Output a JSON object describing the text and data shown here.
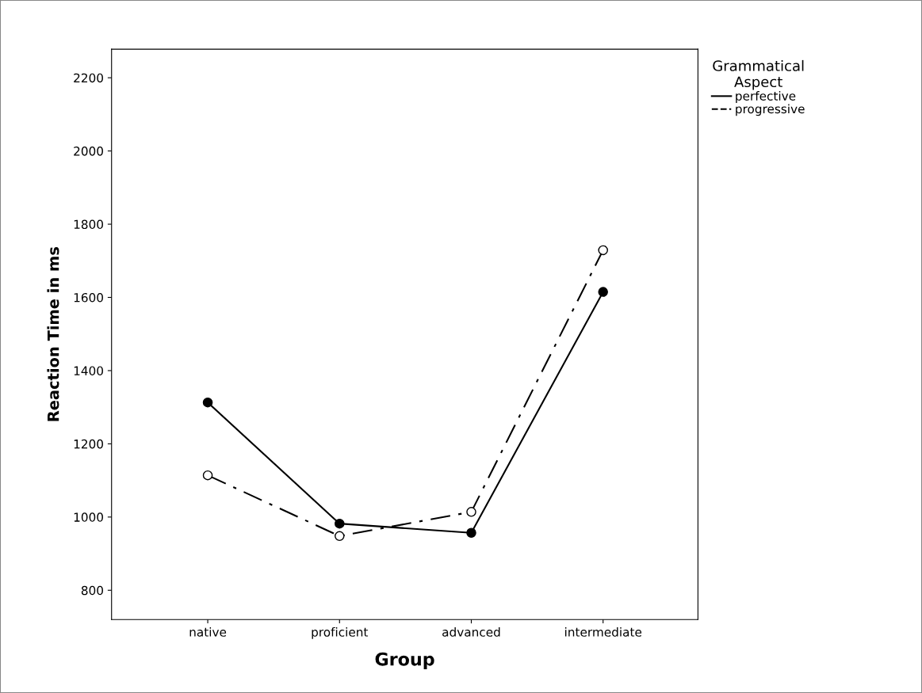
{
  "chart_data": {
    "type": "line",
    "xlabel": "Group",
    "ylabel": "Reaction Time in ms",
    "legend_title": "Grammatical\nAspect",
    "legend": "top right",
    "categories": [
      "native",
      "proficient",
      "advanced",
      "intermediate"
    ],
    "series": [
      {
        "name": "perfective",
        "color": "#000000",
        "values": [
          1313,
          982,
          957,
          1615
        ],
        "marker": "circle",
        "line_style": "solid"
      },
      {
        "name": "progressive",
        "color": "#000000",
        "values": [
          1114,
          948,
          1014,
          1729
        ],
        "marker": "open circle",
        "line_style": "dashdot"
      }
    ],
    "ylim": [
      720,
      2278
    ],
    "yticks": [
      800,
      1000,
      1200,
      1400,
      1600,
      1800,
      2000,
      2200
    ],
    "grid": false
  }
}
